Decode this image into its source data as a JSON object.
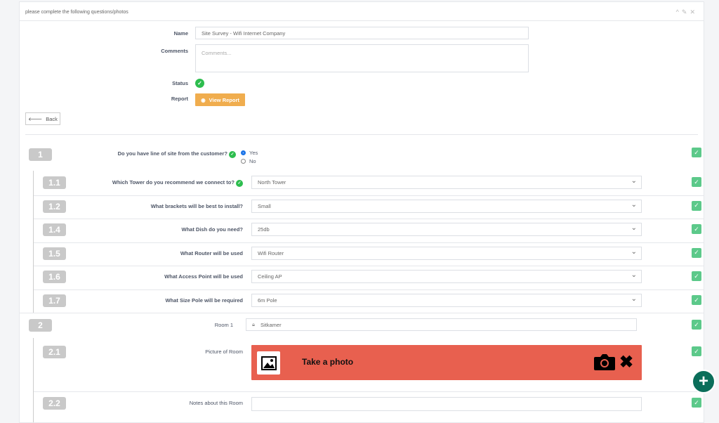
{
  "panel": {
    "title": "please complete the following questions/photos",
    "tools": [
      "chevron-up-icon",
      "wrench-icon",
      "close-icon"
    ]
  },
  "form": {
    "name_label": "Name",
    "name_value": "Site Survey - Wifi Internet Company",
    "comments_label": "Comments",
    "comments_placeholder": "Comments...",
    "status_label": "Status",
    "report_label": "Report",
    "view_report": "View Report",
    "back": "Back"
  },
  "q1": {
    "num": "1",
    "label": "Do you have line of site from the customer?",
    "options": [
      "Yes",
      "No"
    ],
    "selected": "Yes"
  },
  "subs": [
    {
      "num": "1.1",
      "label": "Which Tower do you recommend we connect to?",
      "value": "North Tower",
      "answered": true
    },
    {
      "num": "1.2",
      "label": "What brackets will be best to install?",
      "value": "Small"
    },
    {
      "num": "1.4",
      "label": "What Dish do you need?",
      "value": "25db"
    },
    {
      "num": "1.5",
      "label": "What Router will be used",
      "value": "Wifi Router"
    },
    {
      "num": "1.6",
      "label": "What Access Point will be used",
      "value": "Ceiling AP"
    },
    {
      "num": "1.7",
      "label": "What Size Pole will be required",
      "value": "6m Pole"
    }
  ],
  "q2": {
    "num": "2",
    "label": "Room 1",
    "value": "Sitkamer"
  },
  "q21": {
    "num": "2.1",
    "label": "Picture of Room",
    "photo_text": "Take a photo",
    "color": "#e8604f"
  },
  "q22": {
    "num": "2.2",
    "label": "Notes about this Room"
  }
}
